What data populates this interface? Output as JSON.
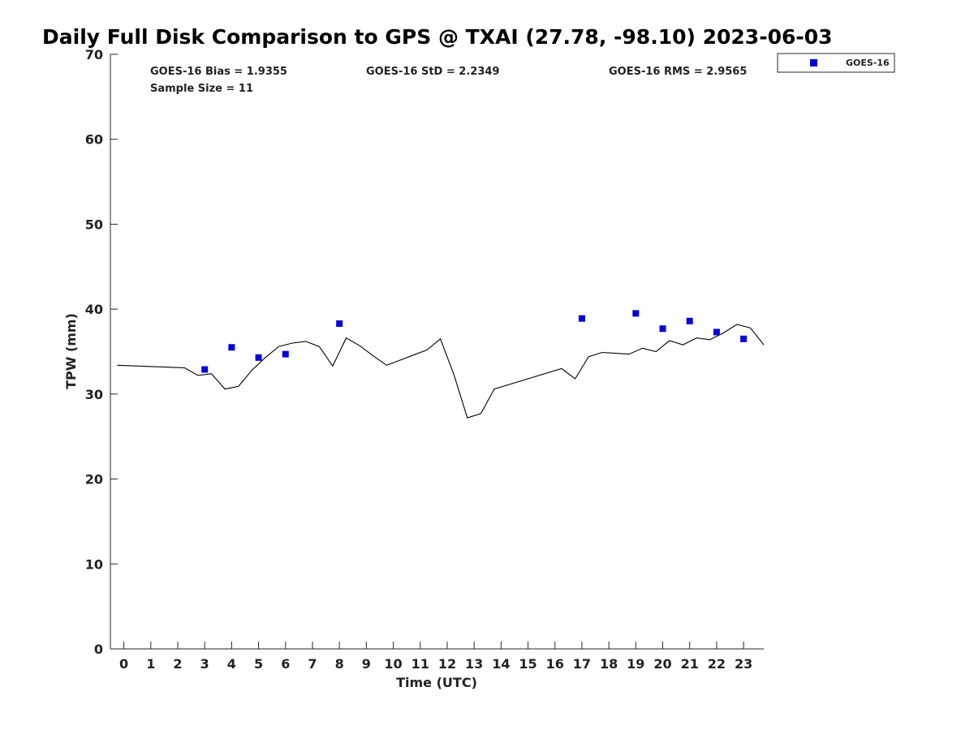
{
  "chart_data": {
    "type": "scatter",
    "title": "Daily Full Disk Comparison to GPS @ TXAI (27.78, -98.10) 2023-06-03",
    "xlabel": "Time (UTC)",
    "ylabel": "TPW (mm)",
    "xlim": [
      -0.5,
      23.75
    ],
    "ylim": [
      0,
      70
    ],
    "x_ticks": [
      0,
      1,
      2,
      3,
      4,
      5,
      6,
      7,
      8,
      9,
      10,
      11,
      12,
      13,
      14,
      15,
      16,
      17,
      18,
      19,
      20,
      21,
      22,
      23
    ],
    "y_ticks": [
      0,
      10,
      20,
      30,
      40,
      50,
      60,
      70
    ],
    "grid": false,
    "legend_position": "top-right",
    "stats": {
      "bias": "GOES-16 Bias = 1.9355",
      "std": "GOES-16 StD = 2.2349",
      "rms": "GOES-16 RMS = 2.9565",
      "sample_size": "Sample Size = 11"
    },
    "series": [
      {
        "name": "GOES-16",
        "kind": "scatter",
        "marker": "square",
        "color": "#0000dd",
        "x": [
          3,
          4,
          5,
          6,
          8,
          17,
          19,
          20,
          21,
          22,
          23
        ],
        "y": [
          32.9,
          35.5,
          34.3,
          34.7,
          38.3,
          38.9,
          39.5,
          37.7,
          38.6,
          37.3,
          36.5
        ]
      },
      {
        "kind": "line",
        "color": "#000000",
        "x": [
          -0.25,
          2.25,
          2.75,
          3.25,
          3.75,
          4.25,
          4.75,
          5.25,
          5.75,
          6.25,
          6.75,
          7.25,
          7.75,
          8.25,
          8.75,
          9.25,
          9.75,
          10.25,
          10.75,
          11.25,
          11.75,
          12.25,
          12.75,
          13.25,
          13.75,
          16.25,
          16.75,
          17.25,
          17.75,
          18.75,
          19.25,
          19.75,
          20.25,
          20.75,
          21.25,
          21.75,
          22.25,
          22.75,
          23.25,
          23.75
        ],
        "y": [
          33.4,
          33.1,
          32.2,
          32.4,
          30.6,
          30.9,
          32.8,
          34.3,
          35.6,
          36.0,
          36.2,
          35.6,
          33.3,
          36.6,
          35.7,
          34.5,
          33.4,
          34.0,
          34.6,
          35.2,
          36.5,
          32.3,
          27.2,
          27.7,
          30.6,
          33.0,
          31.8,
          34.4,
          34.9,
          34.7,
          35.4,
          35.0,
          36.3,
          35.8,
          36.6,
          36.4,
          37.2,
          38.2,
          37.8,
          35.8
        ]
      }
    ]
  }
}
